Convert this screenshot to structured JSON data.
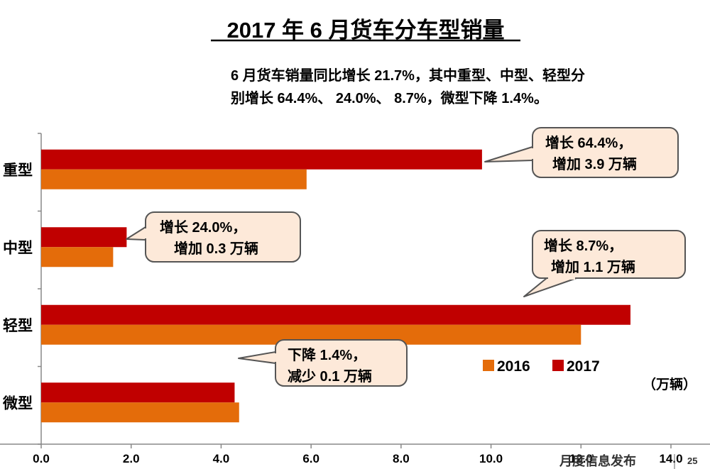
{
  "header": {
    "title": "2017 年 6 月货车分车型销量",
    "summary_line1": "6 月货车销量同比增长 21.7%，其中重型、中型、轻型分",
    "summary_line2": "别增长 64.4%、  24.0%、  8.7%，微型下降 1.4%。"
  },
  "chart_data": {
    "type": "bar",
    "orientation": "horizontal",
    "categories": [
      "重型",
      "中型",
      "轻型",
      "微型"
    ],
    "series": [
      {
        "name": "2017",
        "color": "#c00000",
        "values": [
          9.8,
          1.9,
          13.1,
          4.3
        ]
      },
      {
        "name": "2016",
        "color": "#e46c0a",
        "values": [
          5.9,
          1.6,
          12.0,
          4.4
        ]
      }
    ],
    "xlim": [
      0,
      14
    ],
    "xticks": [
      "0.0",
      "2.0",
      "4.0",
      "6.0",
      "8.0",
      "10.0",
      "12.0",
      "14.0"
    ],
    "unit": "（万辆）",
    "legend_position": "right",
    "annotations": [
      {
        "category": "重型",
        "line1": "增长 64.4%，",
        "line2": "增加 3.9 万辆"
      },
      {
        "category": "中型",
        "line1": "增长 24.0%，",
        "line2": "增加 0.3 万辆"
      },
      {
        "category": "轻型",
        "line1": "增长 8.7%，",
        "line2": "增加  1.1 万辆"
      },
      {
        "category": "微型",
        "line1": "下降 1.4%，",
        "line2": "减少 0.1 万辆"
      }
    ]
  },
  "footer": {
    "source": "月度信息发布",
    "page_number": "25"
  },
  "colors": {
    "callout_fill": "#fde9d9",
    "callout_stroke": "#555555"
  }
}
